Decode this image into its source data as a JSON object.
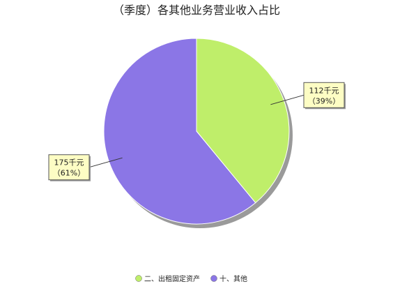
{
  "chart_data": {
    "type": "pie",
    "title": "（季度）各其他业务营业收入占比",
    "unit": "千元",
    "slices": [
      {
        "name": "二、出租固定资产",
        "value": 112,
        "label_value": "112千元",
        "label_pct": "（39%）",
        "color": "#bfee6a"
      },
      {
        "name": "十、其他",
        "value": 175,
        "label_value": "175千元",
        "label_pct": "（61%）",
        "color": "#8b76e6"
      }
    ],
    "legend_position": "bottom"
  }
}
